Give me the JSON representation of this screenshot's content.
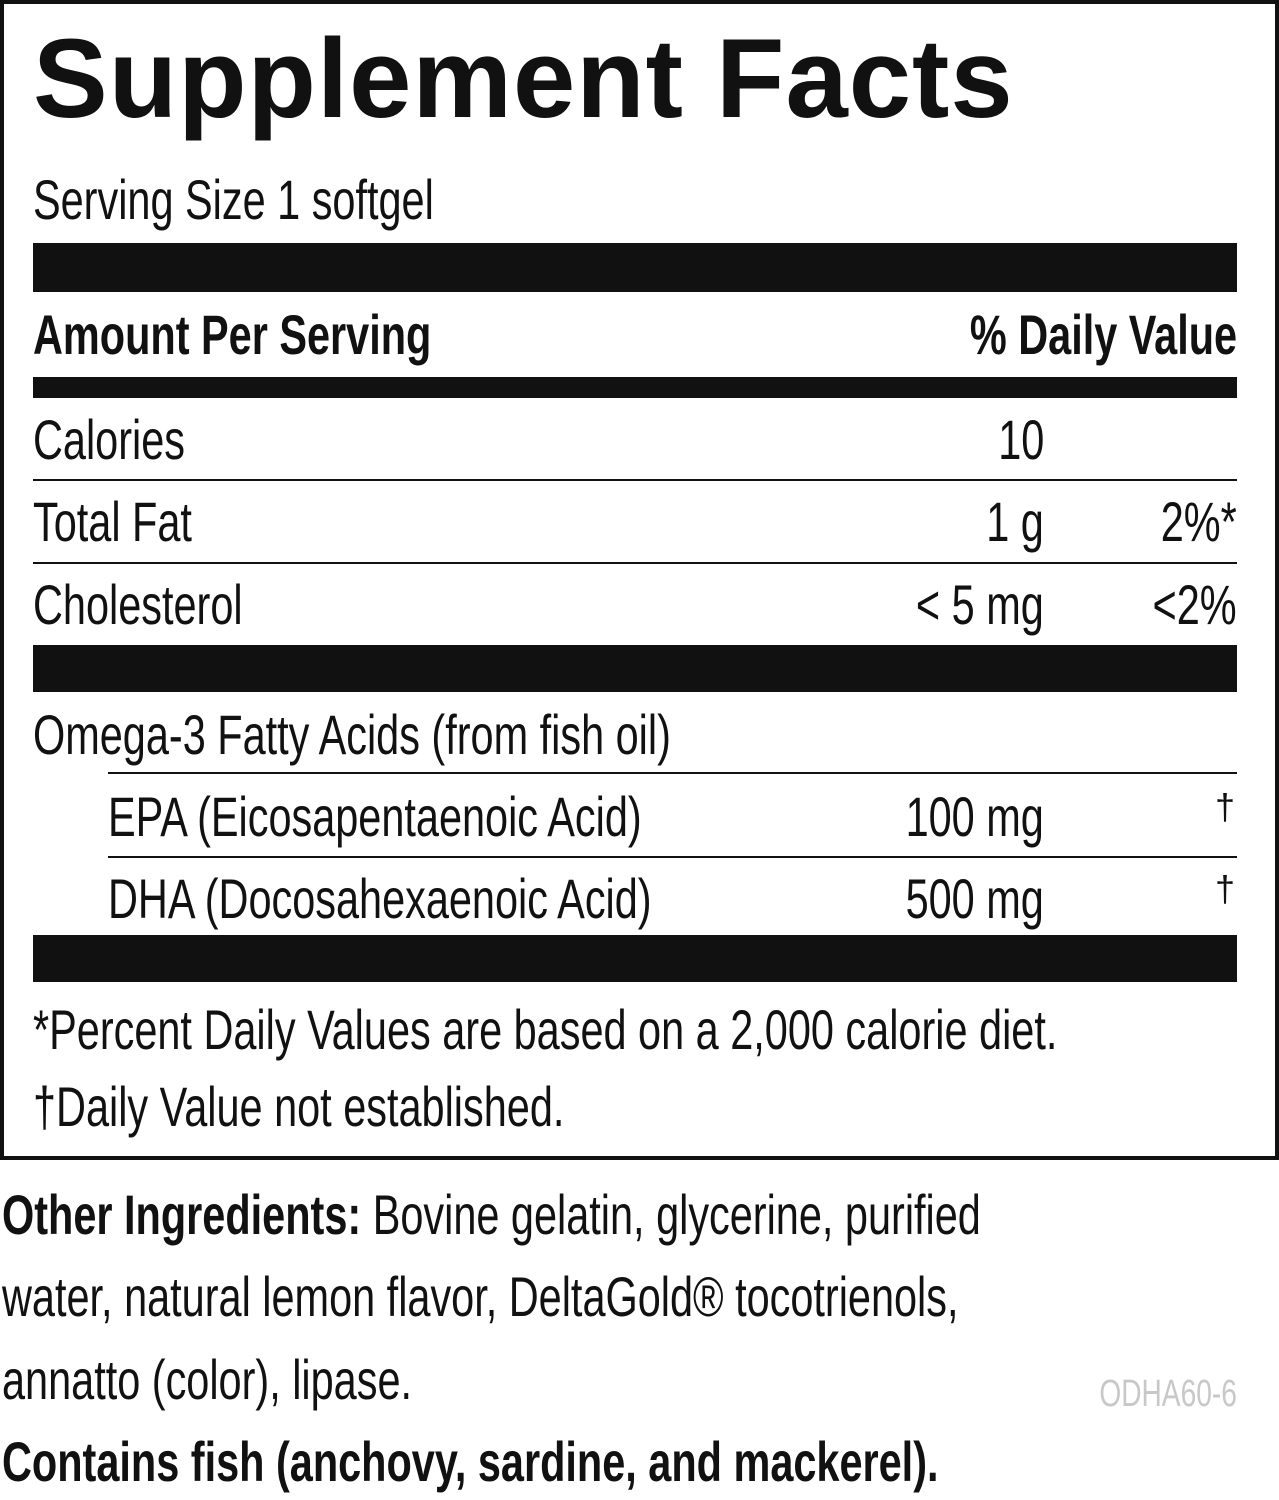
{
  "title": "Supplement Facts",
  "serving_size": "Serving Size 1 softgel",
  "header": {
    "amount": "Amount Per Serving",
    "dv": "% Daily Value"
  },
  "rows": [
    {
      "name": "Calories",
      "amount": "10",
      "dv": ""
    },
    {
      "name": "Total Fat",
      "amount": "1 g",
      "dv": "2%*"
    },
    {
      "name": "Cholesterol",
      "amount": "< 5 mg",
      "dv": "<2%"
    }
  ],
  "omega": {
    "name": "Omega-3 Fatty Acids (from fish oil)",
    "sub": [
      {
        "name": "EPA (Eicosapentaenoic Acid)",
        "amount": "100 mg",
        "dv": "†"
      },
      {
        "name": "DHA (Docosahexaenoic Acid)",
        "amount": "500 mg",
        "dv": "†"
      }
    ]
  },
  "footnotes": [
    "*Percent Daily Values are based on a 2,000 calorie diet.",
    "†Daily Value not established."
  ],
  "other": {
    "label": "Other Ingredients:",
    "lines": [
      " Bovine gelatin, glycerine, purified",
      "water, natural lemon flavor, DeltaGold® tocotrienols,",
      "annatto (color), lipase."
    ]
  },
  "code": "ODHA60-6",
  "allergen": "Contains fish (anchovy, sardine, and mackerel)."
}
